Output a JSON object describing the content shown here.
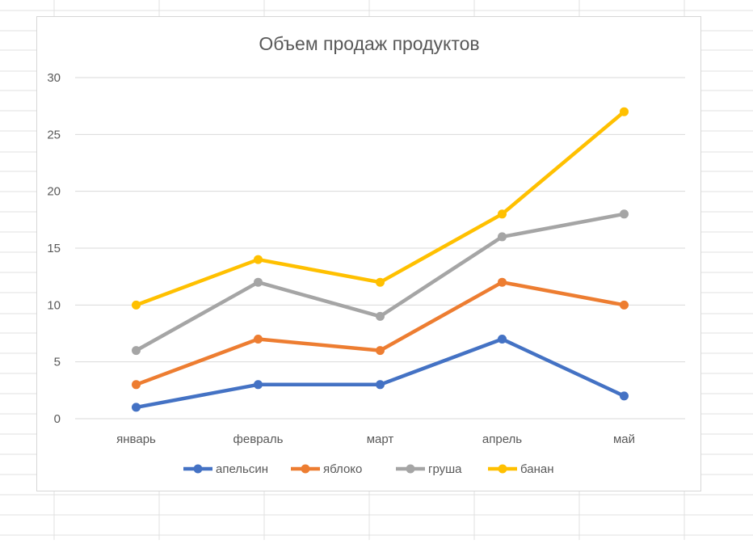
{
  "chart_data": {
    "type": "line",
    "title": "Объем продаж продуктов",
    "categories": [
      "январь",
      "февраль",
      "март",
      "апрель",
      "май"
    ],
    "yticks": [
      "0",
      "5",
      "10",
      "15",
      "20",
      "25",
      "30"
    ],
    "ylim": [
      0,
      30
    ],
    "grid": true,
    "legend_position": "bottom",
    "series": [
      {
        "name": "апельсин",
        "color": "#4472C4",
        "values": [
          1,
          3,
          3,
          7,
          2
        ]
      },
      {
        "name": "яблоко",
        "color": "#ED7D31",
        "values": [
          3,
          7,
          6,
          12,
          10
        ]
      },
      {
        "name": "груша",
        "color": "#A5A5A5",
        "values": [
          6,
          12,
          9,
          16,
          18
        ]
      },
      {
        "name": "банан",
        "color": "#FFC000",
        "values": [
          10,
          14,
          12,
          18,
          27
        ]
      }
    ]
  }
}
